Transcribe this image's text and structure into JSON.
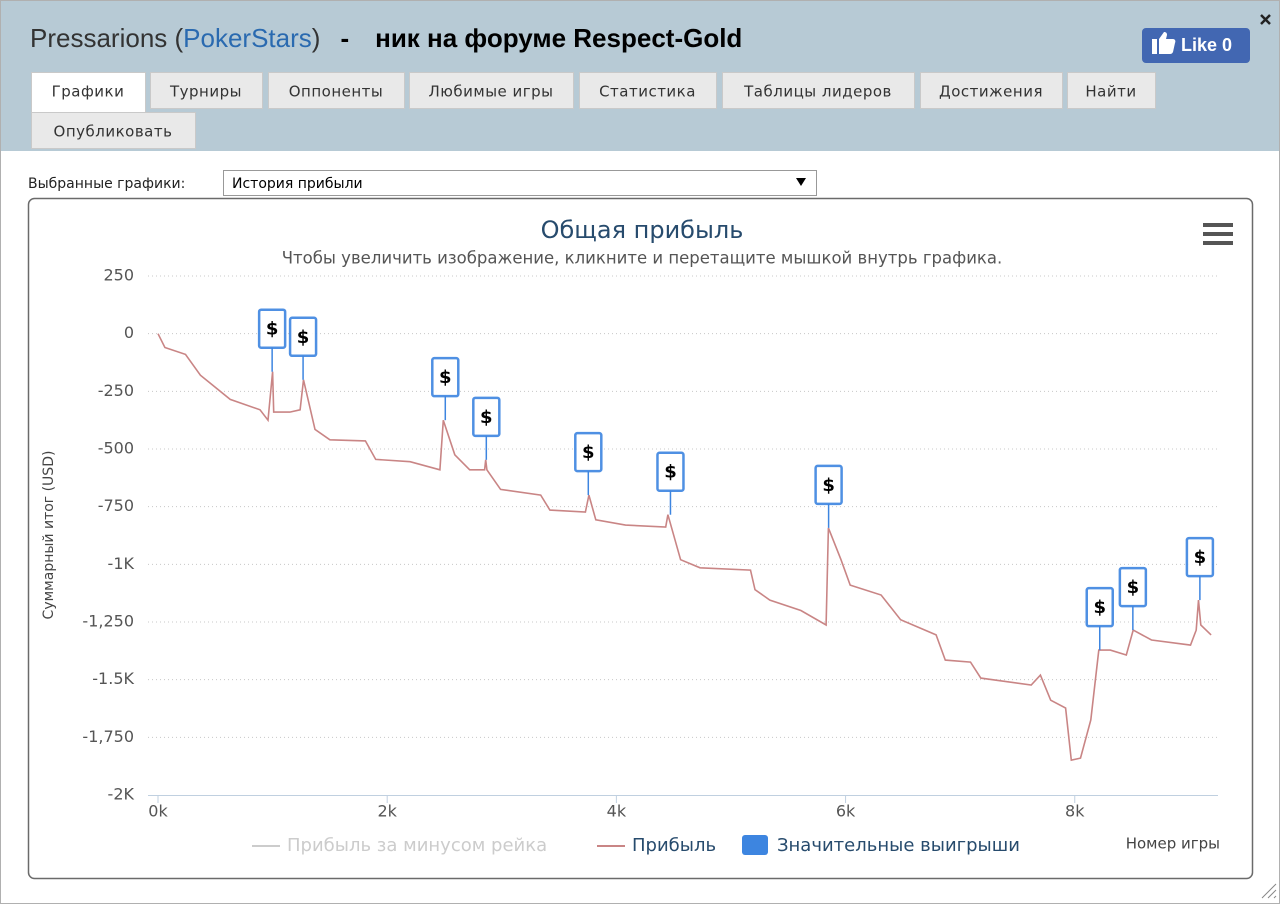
{
  "header": {
    "title_parts": [
      "Pressarions (",
      "PokerStars",
      ")",
      "-",
      "ник на форуме Respect-Gold"
    ],
    "like": {
      "label": "Like",
      "count": 0
    }
  },
  "tabs": [
    "Графики",
    "Турниры",
    "Оппоненты",
    "Любимые игры",
    "Статистика",
    "Таблицы лидеров",
    "Достижения",
    "Найти",
    "Опубликовать"
  ],
  "active_tab": 0,
  "selector": {
    "label": "Выбранные графики:",
    "value": "История прибыли"
  },
  "chart_data": {
    "type": "line",
    "title": "Общая прибыль",
    "subtitle": "Чтобы увеличить изображение, кликните и перетащите мышкой внутрь графика.",
    "x_label": "Номер игры",
    "y_label": "Суммарный итог (USD)",
    "xlim": [
      0,
      9250
    ],
    "ylim": [
      -2000,
      250
    ],
    "xticks": [
      {
        "value": 0,
        "label": "0k"
      },
      {
        "value": 2000,
        "label": "2k"
      },
      {
        "value": 4000,
        "label": "4k"
      },
      {
        "value": 6000,
        "label": "6k"
      },
      {
        "value": 8000,
        "label": "8k"
      }
    ],
    "yticks": [
      {
        "value": -2000,
        "label": "-2K"
      },
      {
        "value": -1750,
        "label": "-1,750"
      },
      {
        "value": -1500,
        "label": "-1.5K"
      },
      {
        "value": -1250,
        "label": "-1,250"
      },
      {
        "value": -1000,
        "label": "-1K"
      },
      -750,
      -500,
      -250,
      0,
      250
    ],
    "grid": true,
    "series": [
      {
        "name": "Прибыль за минусом рейка",
        "color": "#cccccc",
        "visible": false
      },
      {
        "name": "Прибыль",
        "color": "#c98585",
        "visible": true,
        "x": [
          0,
          60,
          240,
          370,
          630,
          890,
          960,
          1000,
          1010,
          1150,
          1240,
          1270,
          1370,
          1500,
          1810,
          1900,
          2200,
          2460,
          2490,
          2590,
          2720,
          2850,
          2860,
          2870,
          2990,
          3340,
          3420,
          3730,
          3760,
          3820,
          4080,
          4430,
          4450,
          4560,
          4730,
          5170,
          5210,
          5340,
          5610,
          5830,
          5850,
          5960,
          6040,
          6310,
          6480,
          6790,
          6870,
          7090,
          7180,
          7620,
          7700,
          7790,
          7920,
          7970,
          8050,
          8140,
          8210,
          8310,
          8450,
          8510,
          8670,
          9010,
          9060,
          9080,
          9100,
          9190
        ],
        "values": [
          0,
          -60,
          -90,
          -180,
          -285,
          -330,
          -375,
          -165,
          -340,
          -340,
          -330,
          -200,
          -415,
          -460,
          -465,
          -545,
          -555,
          -590,
          -375,
          -525,
          -590,
          -590,
          -547,
          -590,
          -675,
          -700,
          -765,
          -773,
          -700,
          -807,
          -830,
          -838,
          -785,
          -980,
          -1015,
          -1025,
          -1110,
          -1155,
          -1200,
          -1263,
          -842,
          -980,
          -1090,
          -1133,
          -1240,
          -1306,
          -1415,
          -1424,
          -1493,
          -1523,
          -1480,
          -1589,
          -1623,
          -1849,
          -1840,
          -1675,
          -1372,
          -1372,
          -1393,
          -1285,
          -1328,
          -1350,
          -1285,
          -1155,
          -1263,
          -1306
        ]
      },
      {
        "name": "Значительные выигрыши",
        "color": "#3d85e0",
        "visible": true,
        "title": "$",
        "x": [
          996,
          1266,
          2507,
          2865,
          3755,
          4472,
          5852,
          8218,
          8507,
          9092
        ],
        "values": [
          -165,
          -200,
          -375,
          -547,
          -700,
          -785,
          -842,
          -1372,
          -1285,
          -1155
        ]
      }
    ]
  }
}
